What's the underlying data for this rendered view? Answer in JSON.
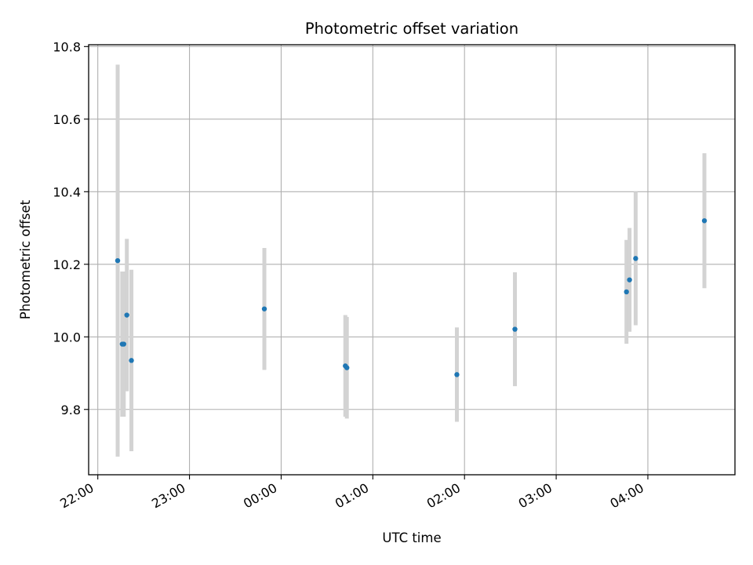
{
  "chart_data": {
    "type": "scatter",
    "title": "Photometric offset variation",
    "xlabel": "UTC time",
    "ylabel": "Photometric offset",
    "x_axis_kind": "time",
    "x_ticks": [
      "22:00",
      "23:00",
      "00:00",
      "01:00",
      "02:00",
      "03:00",
      "04:00"
    ],
    "xlim": [
      "21:54",
      "28:57"
    ],
    "ylim": [
      9.62,
      10.805
    ],
    "y_ticks": [
      9.8,
      10.0,
      10.2,
      10.4,
      10.6,
      10.8
    ],
    "grid": true,
    "points": [
      {
        "t": "22:13",
        "y": 10.21,
        "err": 0.54
      },
      {
        "t": "22:16",
        "y": 9.98,
        "err": 0.2
      },
      {
        "t": "22:17",
        "y": 9.98,
        "err": 0.2
      },
      {
        "t": "22:19",
        "y": 10.06,
        "err": 0.21
      },
      {
        "t": "22:22",
        "y": 9.935,
        "err": 0.25
      },
      {
        "t": "23:49",
        "y": 10.077,
        "err": 0.168
      },
      {
        "t": "00:42",
        "y": 9.92,
        "err": 0.14
      },
      {
        "t": "00:43",
        "y": 9.915,
        "err": 0.14
      },
      {
        "t": "01:55",
        "y": 9.896,
        "err": 0.13
      },
      {
        "t": "02:33",
        "y": 10.021,
        "err": 0.157
      },
      {
        "t": "03:46",
        "y": 10.124,
        "err": 0.143
      },
      {
        "t": "03:48",
        "y": 10.157,
        "err": 0.143
      },
      {
        "t": "03:52",
        "y": 10.216,
        "err": 0.184
      },
      {
        "t": "04:37",
        "y": 10.32,
        "err": 0.186
      }
    ],
    "marker_color": "#1f77b4",
    "errorbar_color": "#d3d3d3"
  }
}
